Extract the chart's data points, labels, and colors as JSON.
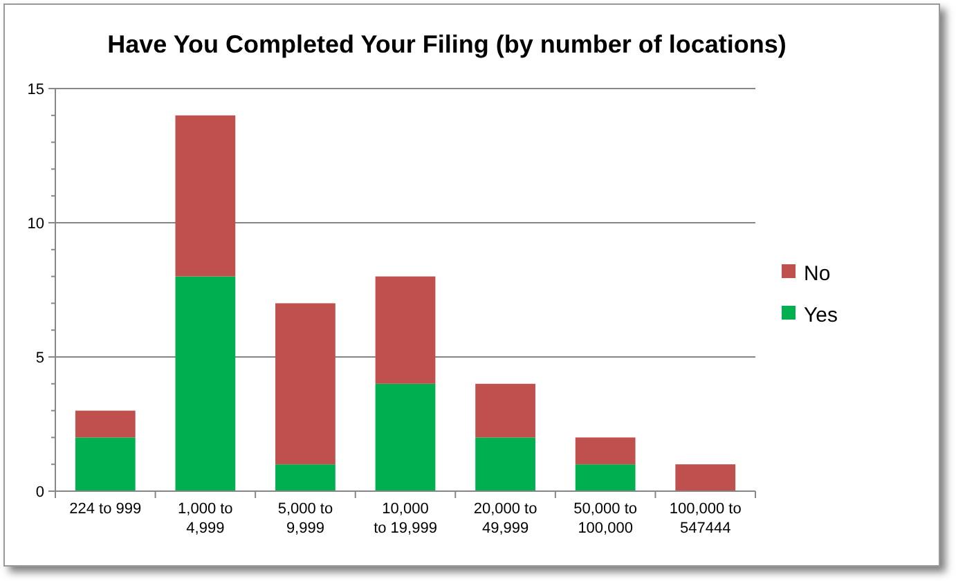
{
  "chart_data": {
    "type": "bar",
    "title": "Have You Completed Your Filing (by number of locations)",
    "categories": [
      "224 to 999",
      "1,000 to\n4,999",
      "5,000 to\n9,999",
      "10,000\nto 19,999",
      "20,000 to\n49,999",
      "50,000 to\n100,000",
      "100,000 to\n547444"
    ],
    "stacked": true,
    "series": [
      {
        "name": "Yes",
        "color": "#00b050",
        "values": [
          2,
          8,
          1,
          4,
          2,
          1,
          0
        ]
      },
      {
        "name": "No",
        "color": "#c0504d",
        "values": [
          1,
          6,
          6,
          4,
          2,
          1,
          1
        ]
      }
    ],
    "ylim": [
      0,
      15
    ],
    "yticks": [
      0,
      {
        "value": 1,
        "label": null
      },
      {
        "value": 2,
        "label": null
      },
      {
        "value": 3,
        "label": null
      },
      {
        "value": 4,
        "label": null
      },
      5,
      {
        "value": 6,
        "label": null
      },
      {
        "value": 7,
        "label": null
      },
      {
        "value": 8,
        "label": null
      },
      {
        "value": 9,
        "label": null
      },
      10,
      {
        "value": 11,
        "label": null
      },
      {
        "value": 12,
        "label": null
      },
      {
        "value": 13,
        "label": null
      },
      {
        "value": 14,
        "label": null
      },
      15
    ],
    "grid": "y",
    "legend": "right"
  }
}
